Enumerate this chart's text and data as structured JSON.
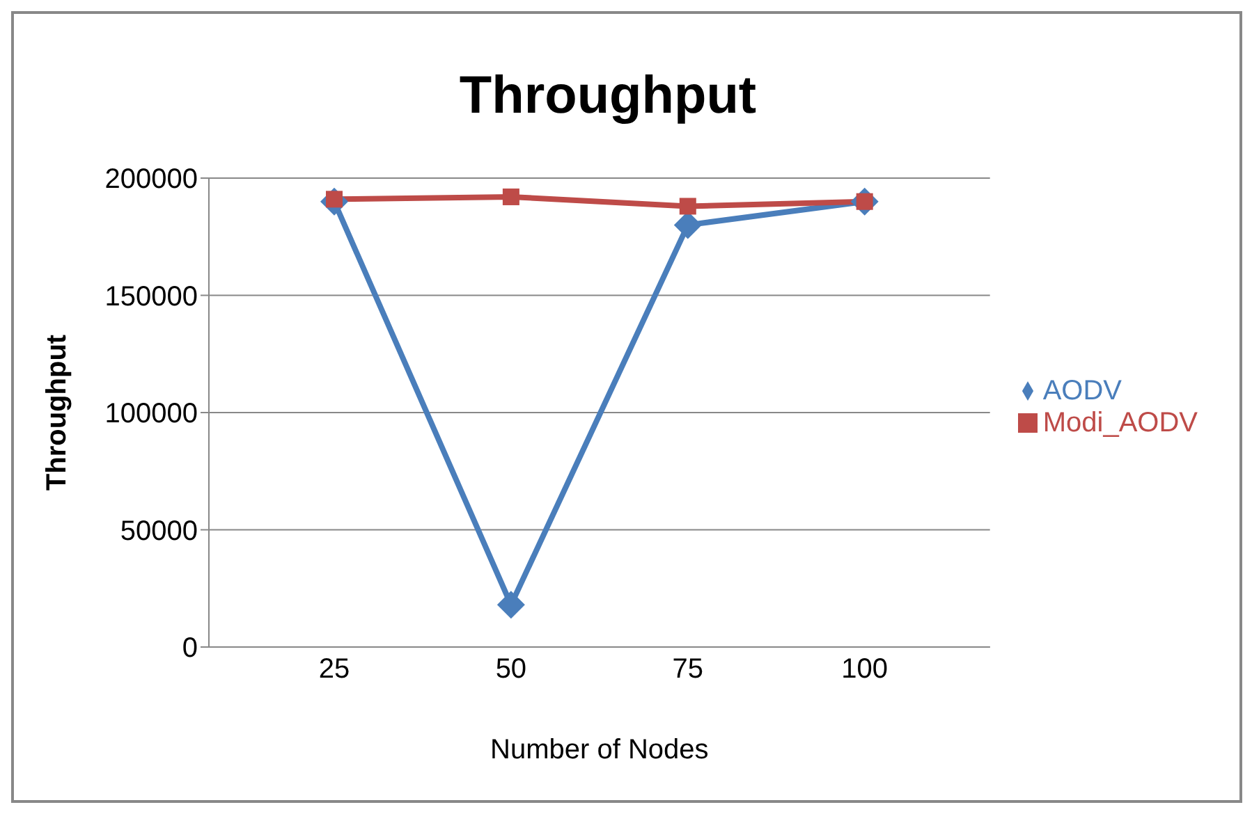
{
  "chart_data": {
    "type": "line",
    "title": "Throughput",
    "xlabel": "Number of Nodes",
    "ylabel": "Throughput",
    "categories": [
      "25",
      "50",
      "75",
      "100"
    ],
    "series": [
      {
        "name": "AODV",
        "color": "#4a7ebb",
        "marker": "diamond",
        "values": [
          190000,
          18000,
          180000,
          190000
        ]
      },
      {
        "name": "Modi_AODV",
        "color": "#be4b48",
        "marker": "square",
        "values": [
          191000,
          192000,
          188000,
          190000
        ]
      }
    ],
    "ylim": [
      0,
      200000
    ],
    "yticks": [
      0,
      50000,
      100000,
      150000,
      200000
    ],
    "grid": "y",
    "legend": "right"
  }
}
